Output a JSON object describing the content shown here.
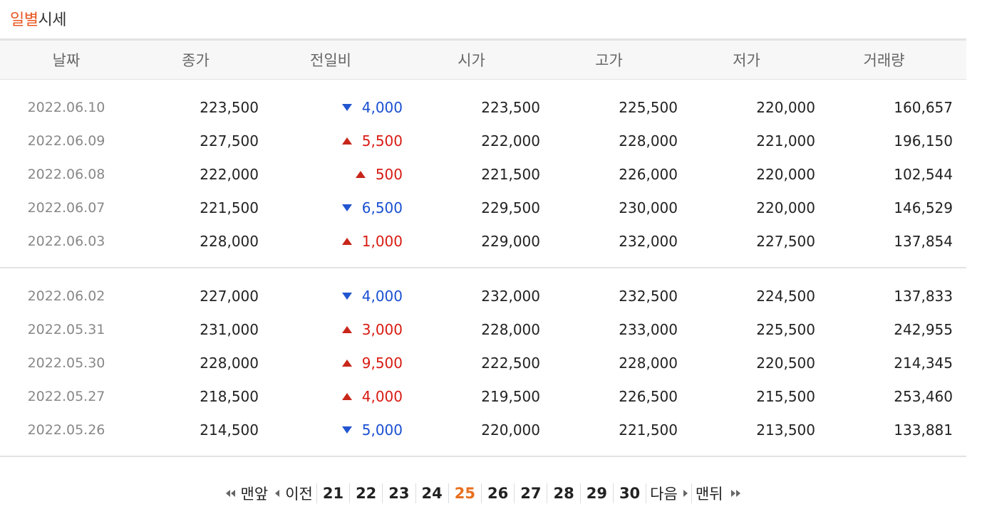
{
  "title": {
    "highlight": "일별",
    "rest": "시세"
  },
  "columns": [
    "날짜",
    "종가",
    "전일비",
    "시가",
    "고가",
    "저가",
    "거래량"
  ],
  "groups": [
    [
      {
        "date": "2022.06.10",
        "close": "223,500",
        "dir": "down",
        "change": "4,000",
        "open": "223,500",
        "high": "225,500",
        "low": "220,000",
        "volume": "160,657"
      },
      {
        "date": "2022.06.09",
        "close": "227,500",
        "dir": "up",
        "change": "5,500",
        "open": "222,000",
        "high": "228,000",
        "low": "221,000",
        "volume": "196,150"
      },
      {
        "date": "2022.06.08",
        "close": "222,000",
        "dir": "up",
        "change": "500",
        "open": "221,500",
        "high": "226,000",
        "low": "220,000",
        "volume": "102,544"
      },
      {
        "date": "2022.06.07",
        "close": "221,500",
        "dir": "down",
        "change": "6,500",
        "open": "229,500",
        "high": "230,000",
        "low": "220,000",
        "volume": "146,529"
      },
      {
        "date": "2022.06.03",
        "close": "228,000",
        "dir": "up",
        "change": "1,000",
        "open": "229,000",
        "high": "232,000",
        "low": "227,500",
        "volume": "137,854"
      }
    ],
    [
      {
        "date": "2022.06.02",
        "close": "227,000",
        "dir": "down",
        "change": "4,000",
        "open": "232,000",
        "high": "232,500",
        "low": "224,500",
        "volume": "137,833"
      },
      {
        "date": "2022.05.31",
        "close": "231,000",
        "dir": "up",
        "change": "3,000",
        "open": "228,000",
        "high": "233,000",
        "low": "225,500",
        "volume": "242,955"
      },
      {
        "date": "2022.05.30",
        "close": "228,000",
        "dir": "up",
        "change": "9,500",
        "open": "222,500",
        "high": "228,000",
        "low": "220,500",
        "volume": "214,345"
      },
      {
        "date": "2022.05.27",
        "close": "218,500",
        "dir": "up",
        "change": "4,000",
        "open": "219,500",
        "high": "226,500",
        "low": "215,500",
        "volume": "253,460"
      },
      {
        "date": "2022.05.26",
        "close": "214,500",
        "dir": "down",
        "change": "5,000",
        "open": "220,000",
        "high": "221,500",
        "low": "213,500",
        "volume": "133,881"
      }
    ]
  ],
  "pager": {
    "first": "맨앞",
    "prev": "이전",
    "pages": [
      "21",
      "22",
      "23",
      "24",
      "25",
      "26",
      "27",
      "28",
      "29",
      "30"
    ],
    "current": "25",
    "next": "다음",
    "last": "맨뒤"
  },
  "colors": {
    "up": "#d81b12",
    "down": "#1a4fd1",
    "accent": "#e8551f",
    "current_page": "#e8701f"
  }
}
